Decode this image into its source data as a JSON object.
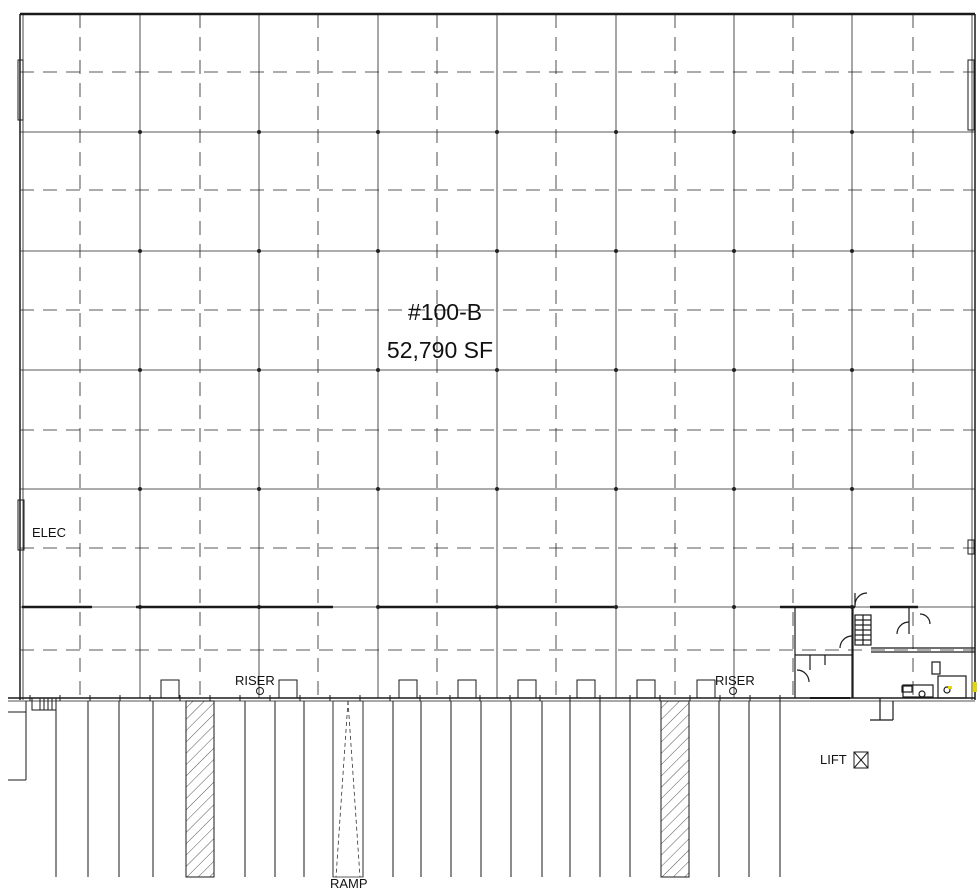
{
  "unit": {
    "number": "#100-B",
    "area": "52,790 SF"
  },
  "labels": {
    "elec": "ELEC",
    "riser": "RISER",
    "ramp": "RAMP",
    "lift": "LIFT"
  },
  "colors": {
    "line": "#1a1a1a",
    "grid": "#222222",
    "hatch": "#555555",
    "accent": "#e8d800"
  }
}
